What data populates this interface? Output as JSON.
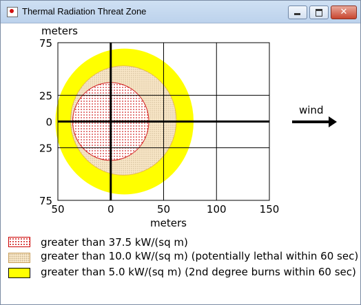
{
  "window": {
    "title": "Thermal Radiation Threat Zone",
    "icon": "app-icon",
    "buttons": [
      "minimize-icon",
      "maximize-icon",
      "close-icon"
    ]
  },
  "wind_label": "wind",
  "chart_data": {
    "type": "area",
    "xlabel": "meters",
    "ylabel": "meters",
    "x_ticks": [
      "50",
      "0",
      "50",
      "100",
      "150"
    ],
    "y_ticks": [
      "75",
      "25",
      "0",
      "25",
      "75"
    ],
    "xlim": [
      -50,
      150
    ],
    "ylim": [
      -75,
      75
    ],
    "grid": true,
    "threat_zones": [
      {
        "name": "greater than 5.0 kW/(sq m) (2nd degree burns within 60 sec)",
        "center_x": 13,
        "center_y": 0,
        "radius_x": 65,
        "radius_y": 69,
        "color": "#ffff00"
      },
      {
        "name": "greater than 10.0 kW/(sq m) (potentially lethal within 60 sec)",
        "center_x": 12,
        "center_y": 1,
        "radius_x": 50,
        "radius_y": 52,
        "color": "#f9e7c8"
      },
      {
        "name": "greater than 37.5 kW/(sq m)",
        "center_x": 0,
        "center_y": 0,
        "radius_x": 36,
        "radius_y": 37,
        "color": "#d21e1e"
      }
    ]
  },
  "legend": [
    {
      "label": "greater than 37.5 kW/(sq m)"
    },
    {
      "label": "greater than 10.0 kW/(sq m) (potentially lethal within 60 sec)"
    },
    {
      "label": "greater than 5.0 kW/(sq m) (2nd degree burns within 60 sec)"
    }
  ]
}
